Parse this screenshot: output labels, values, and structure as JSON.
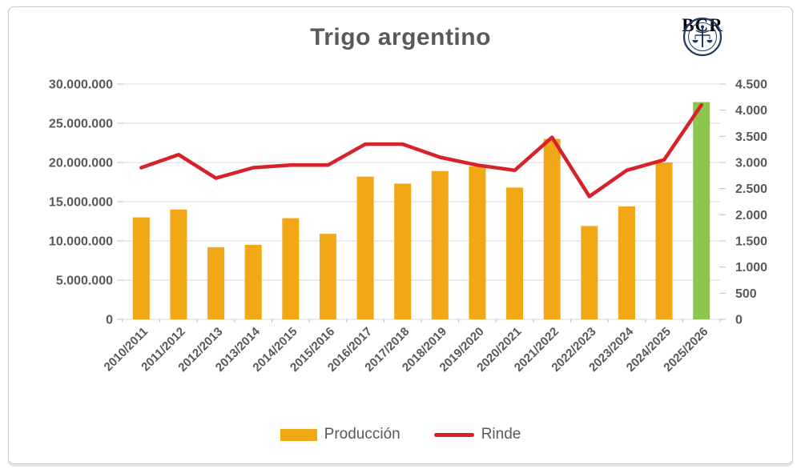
{
  "title": "Trigo argentino",
  "logo": {
    "text": "BCR",
    "color": "#1f3864"
  },
  "colors": {
    "bar": "#F2A816",
    "bar_highlight": "#8DC64D",
    "line": "#D7222A",
    "grid": "#D9D9D9",
    "tick": "#BFBFBF",
    "axis_text": "#595959",
    "title_text": "#595959"
  },
  "chart_data": {
    "type": "bar",
    "subtype": "bar-line-combo",
    "title": "Trigo argentino",
    "grid": "horizontal",
    "legend_position": "bottom",
    "categories": [
      "2010/2011",
      "2011/2012",
      "2012/2013",
      "2013/2014",
      "2014/2015",
      "2015/2016",
      "2016/2017",
      "2017/2018",
      "2018/2019",
      "2019/2020",
      "2020/2021",
      "2021/2022",
      "2022/2023",
      "2023/2024",
      "2024/2025",
      "2025/2026"
    ],
    "series": [
      {
        "name": "Producción",
        "type": "bar",
        "axis": "left",
        "color": "#F2A816",
        "last_bar_color": "#8DC64D",
        "values": [
          13000000,
          14000000,
          9200000,
          9500000,
          12900000,
          10900000,
          18200000,
          17300000,
          18900000,
          19500000,
          16800000,
          23000000,
          11900000,
          14400000,
          20000000,
          27700000
        ]
      },
      {
        "name": "Rinde",
        "type": "line",
        "axis": "right",
        "color": "#D7222A",
        "values": [
          2900,
          3150,
          2700,
          2900,
          2950,
          2950,
          3350,
          3350,
          3100,
          2950,
          2850,
          3480,
          2350,
          2850,
          3050,
          4100
        ]
      }
    ],
    "left_axis": {
      "max": 30000000,
      "step": 5000000,
      "ticks": [
        "0",
        "5.000.000",
        "10.000.000",
        "15.000.000",
        "20.000.000",
        "25.000.000",
        "30.000.000"
      ]
    },
    "right_axis": {
      "max": 4500,
      "step": 500,
      "ticks": [
        "0",
        "500",
        "1.000",
        "1.500",
        "2.000",
        "2.500",
        "3.000",
        "3.500",
        "4.000",
        "4.500"
      ]
    }
  },
  "legend": {
    "items": [
      {
        "label": "Producción",
        "swatch": "bar"
      },
      {
        "label": "Rinde",
        "swatch": "line"
      }
    ]
  }
}
